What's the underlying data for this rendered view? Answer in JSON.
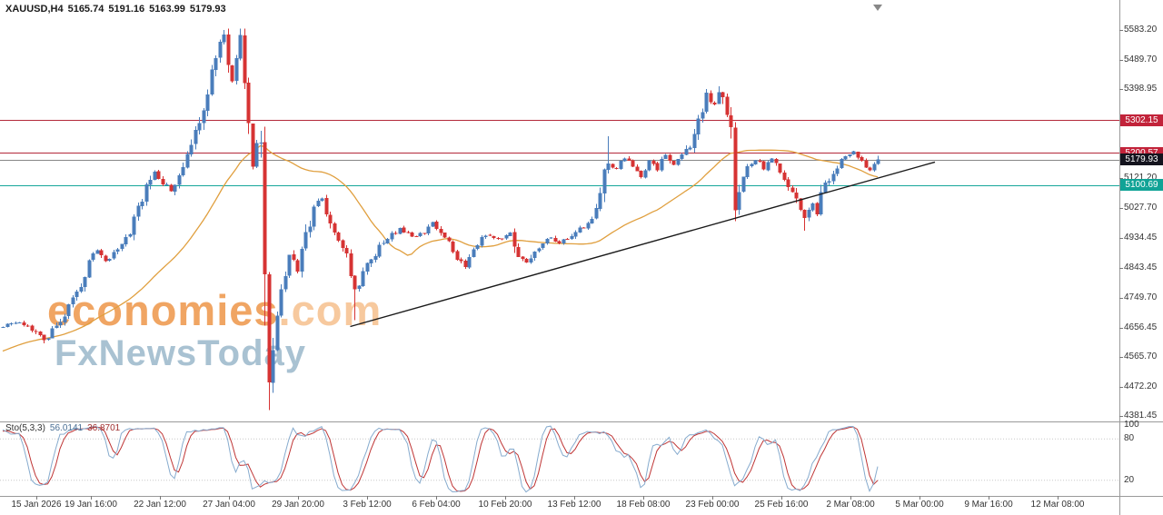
{
  "header": {
    "symbol_period": "XAUUSD,H4",
    "open": "5165.74",
    "high": "5191.16",
    "low": "5163.99",
    "close": "5179.93"
  },
  "watermark": {
    "line1": "economies",
    "line1_suffix": ".com",
    "line2": "FxNewsToday",
    "color1": "#f0a563",
    "color1b": "#f7c99e",
    "color2": "#a9c2d2"
  },
  "chart_data": {
    "type": "candlestick",
    "symbol": "XAUUSD",
    "timeframe": "H4",
    "grid": "off",
    "legend": "none",
    "colors": {
      "up": "#4a7dbb",
      "down": "#d63333",
      "ma": "#e09f3e",
      "trendline": "#1a1a1a",
      "sto_main": "#86abce",
      "sto_signal": "#bf3535",
      "axis_text": "#333333",
      "separator": "#9a9a9a",
      "level_dotted": "#c8c8c8",
      "current_price_line": "#888888"
    },
    "price_axis": {
      "min": 4381.45,
      "max": 5583.2,
      "labels": [
        "5583.20",
        "5489.70",
        "5398.95",
        "5121.20",
        "5027.70",
        "4934.45",
        "4843.45",
        "4749.70",
        "4656.45",
        "4565.70",
        "4472.20",
        "4381.45"
      ]
    },
    "price_flags": [
      {
        "text": "5302.15",
        "value": 5302.15,
        "bg": "#c2233a",
        "role": "resistance"
      },
      {
        "text": "5200.57",
        "value": 5200.57,
        "bg": "#c2233a",
        "role": "resistance"
      },
      {
        "text": "5179.93",
        "value": 5179.93,
        "bg": "#14141e",
        "role": "current-price"
      },
      {
        "text": "5100.69",
        "value": 5100.69,
        "bg": "#10a396",
        "role": "support"
      }
    ],
    "hlines": [
      {
        "value": 5302.15,
        "color": "#b3293a"
      },
      {
        "value": 5200.57,
        "color": "#b3293a"
      },
      {
        "value": 5179.93,
        "color": "#888888"
      },
      {
        "value": 5100.69,
        "color": "#16a79a"
      }
    ],
    "trendline": {
      "x1_bar": 85,
      "price1": 4660,
      "x2_bar": 228,
      "price2": 5172
    },
    "ma": {
      "period": 36
    },
    "time_labels": [
      "15 Jan 2026",
      "19 Jan 16:00",
      "22 Jan 12:00",
      "27 Jan 04:00",
      "29 Jan 20:00",
      "3 Feb 12:00",
      "6 Feb 04:00",
      "10 Feb 20:00",
      "13 Feb 12:00",
      "18 Feb 08:00",
      "23 Feb 00:00",
      "25 Feb 16:00",
      "2 Mar 08:00",
      "5 Mar 00:00",
      "9 Mar 16:00",
      "12 Mar 08:00"
    ],
    "bars_visible": 215,
    "last_candle": {
      "open": 5165.74,
      "high": 5191.16,
      "low": 5163.99,
      "close": 5179.93
    },
    "keyframes": [
      [
        -45,
        4430
      ],
      [
        -30,
        4520
      ],
      [
        -15,
        4600
      ],
      [
        -5,
        4645
      ],
      [
        0,
        4660
      ],
      [
        4,
        4675
      ],
      [
        8,
        4640
      ],
      [
        10,
        4618
      ],
      [
        12,
        4645
      ],
      [
        15,
        4700
      ],
      [
        18,
        4760
      ],
      [
        21,
        4860
      ],
      [
        23,
        4900
      ],
      [
        25,
        4865
      ],
      [
        28,
        4910
      ],
      [
        31,
        4960
      ],
      [
        34,
        5060
      ],
      [
        37,
        5140
      ],
      [
        39,
        5110
      ],
      [
        41,
        5085
      ],
      [
        44,
        5160
      ],
      [
        47,
        5260
      ],
      [
        50,
        5390
      ],
      [
        52,
        5480
      ],
      [
        54,
        5575
      ],
      [
        55,
        5500
      ],
      [
        56,
        5420
      ],
      [
        57,
        5480
      ],
      [
        58,
        5540
      ],
      [
        59,
        5380
      ],
      [
        60,
        5260
      ],
      [
        61,
        5160
      ],
      [
        62,
        5230
      ],
      [
        63,
        5200
      ],
      [
        64,
        4850
      ],
      [
        65,
        4500
      ],
      [
        66,
        4560
      ],
      [
        67,
        4680
      ],
      [
        68,
        4790
      ],
      [
        70,
        4890
      ],
      [
        72,
        4830
      ],
      [
        74,
        4950
      ],
      [
        76,
        5030
      ],
      [
        78,
        5060
      ],
      [
        80,
        4985
      ],
      [
        82,
        4930
      ],
      [
        84,
        4870
      ],
      [
        86,
        4775
      ],
      [
        88,
        4820
      ],
      [
        90,
        4870
      ],
      [
        92,
        4905
      ],
      [
        95,
        4945
      ],
      [
        97,
        4965
      ],
      [
        100,
        4940
      ],
      [
        103,
        4955
      ],
      [
        105,
        4985
      ],
      [
        107,
        4950
      ],
      [
        109,
        4920
      ],
      [
        111,
        4875
      ],
      [
        113,
        4845
      ],
      [
        115,
        4900
      ],
      [
        118,
        4945
      ],
      [
        121,
        4930
      ],
      [
        124,
        4955
      ],
      [
        126,
        4875
      ],
      [
        128,
        4855
      ],
      [
        130,
        4900
      ],
      [
        132,
        4925
      ],
      [
        134,
        4940
      ],
      [
        136,
        4920
      ],
      [
        138,
        4935
      ],
      [
        140,
        4955
      ],
      [
        142,
        4970
      ],
      [
        144,
        4990
      ],
      [
        146,
        5060
      ],
      [
        148,
        5175
      ],
      [
        150,
        5150
      ],
      [
        152,
        5185
      ],
      [
        154,
        5150
      ],
      [
        156,
        5130
      ],
      [
        158,
        5175
      ],
      [
        160,
        5150
      ],
      [
        162,
        5195
      ],
      [
        164,
        5160
      ],
      [
        166,
        5190
      ],
      [
        168,
        5230
      ],
      [
        170,
        5290
      ],
      [
        172,
        5380
      ],
      [
        174,
        5350
      ],
      [
        175,
        5390
      ],
      [
        176,
        5360
      ],
      [
        177,
        5300
      ],
      [
        178,
        5270
      ],
      [
        179,
        5030
      ],
      [
        180,
        5080
      ],
      [
        181,
        5130
      ],
      [
        182,
        5155
      ],
      [
        184,
        5180
      ],
      [
        186,
        5150
      ],
      [
        188,
        5180
      ],
      [
        190,
        5140
      ],
      [
        192,
        5100
      ],
      [
        194,
        5050
      ],
      [
        196,
        5000
      ],
      [
        198,
        5040
      ],
      [
        199,
        5010
      ],
      [
        200,
        5080
      ],
      [
        202,
        5120
      ],
      [
        204,
        5160
      ],
      [
        206,
        5190
      ],
      [
        208,
        5205
      ],
      [
        210,
        5170
      ],
      [
        212,
        5150
      ],
      [
        214,
        5179.93
      ]
    ],
    "spikes": [
      {
        "bar": 10,
        "low": 4608
      },
      {
        "bar": 54,
        "high": 5583.2
      },
      {
        "bar": 58,
        "high": 5560
      },
      {
        "bar": 65,
        "low": 4400
      },
      {
        "bar": 86,
        "low": 4680
      },
      {
        "bar": 148,
        "high": 5252
      },
      {
        "bar": 172,
        "high": 5400
      },
      {
        "bar": 175,
        "high": 5408
      },
      {
        "bar": 179,
        "low": 4988
      },
      {
        "bar": 196,
        "low": 4958
      }
    ],
    "indicator": {
      "name": "Sto(5,3,3)",
      "k": "56.0141",
      "d": "36.8701",
      "levels": [
        "100",
        "80",
        "20"
      ],
      "range": [
        0,
        100
      ]
    }
  }
}
